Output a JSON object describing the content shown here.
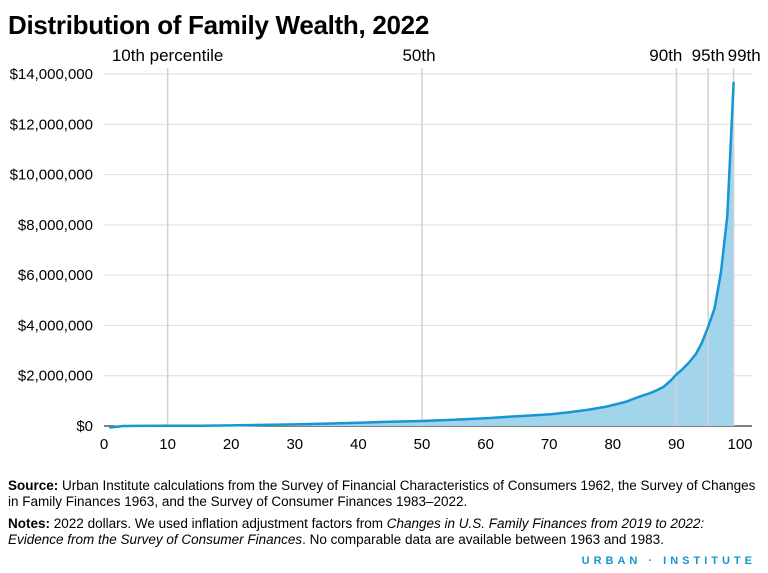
{
  "title": "Distribution of Family Wealth, 2022",
  "colors": {
    "line": "#1696d2",
    "area": "#a2d4ec",
    "grid": "#dedede",
    "text": "#000000"
  },
  "chart_data": {
    "type": "area",
    "title": "Distribution of Family Wealth, 2022",
    "xlabel": "",
    "ylabel": "",
    "xlim": [
      0,
      100
    ],
    "ylim": [
      0,
      14000000
    ],
    "x_ticks": [
      "0",
      "10",
      "20",
      "30",
      "40",
      "50",
      "60",
      "70",
      "80",
      "90",
      "100"
    ],
    "y_ticks": [
      "$0",
      "$2,000,000",
      "$4,000,000",
      "$6,000,000",
      "$8,000,000",
      "$10,000,000",
      "$12,000,000",
      "$14,000,000"
    ],
    "grid": true,
    "reference_lines": [
      {
        "x": 10,
        "label": "10th percentile"
      },
      {
        "x": 50,
        "label": "50th"
      },
      {
        "x": 90,
        "label": "90th"
      },
      {
        "x": 95,
        "label": "95th"
      },
      {
        "x": 99,
        "label": "99th"
      }
    ],
    "series": [
      {
        "x": [
          1,
          3,
          5,
          10,
          15,
          20,
          25,
          30,
          35,
          40,
          45,
          50,
          55,
          60,
          65,
          70,
          73,
          76,
          79,
          82,
          84,
          86,
          87,
          88,
          89,
          90,
          91,
          92,
          93,
          94,
          95,
          96,
          97,
          98,
          99
        ],
        "y": [
          -60000,
          0,
          4000,
          8000,
          12000,
          22000,
          42000,
          65000,
          95000,
          130000,
          170000,
          200000,
          250000,
          310000,
          390000,
          460000,
          540000,
          640000,
          770000,
          960000,
          1150000,
          1320000,
          1430000,
          1560000,
          1780000,
          2050000,
          2270000,
          2530000,
          2840000,
          3300000,
          3950000,
          4680000,
          6100000,
          8350000,
          13650000
        ]
      }
    ]
  },
  "footer": {
    "source_label": "Source:",
    "source_text": "Urban Institute calculations from the Survey of Financial Characteristics of Consumers 1962, the Survey of Changes in Family Finances 1963, and the Survey of Consumer Finances 1983–2022.",
    "notes_label": "Notes:",
    "notes_text_1": "2022 dollars. We used inflation adjustment factors from",
    "notes_italic": "Changes in U.S. Family Finances from 2019 to 2022: Evidence from the Survey of Consumer Finances",
    "notes_text_2": ". No comparable data are available between 1963 and 1983."
  },
  "brand": {
    "left": "URBAN",
    "sep": "·",
    "right": "INSTITUTE"
  }
}
